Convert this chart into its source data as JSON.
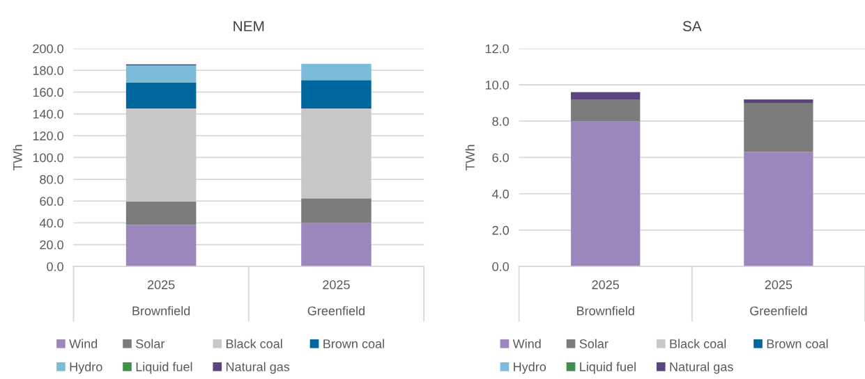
{
  "chart_data": [
    {
      "type": "bar",
      "title": "NEM",
      "ylabel": "TWh",
      "stacked": true,
      "categories": [
        "2025\n\nBrownfield",
        "2025\n\nGreenfield"
      ],
      "ylim": [
        0,
        200
      ],
      "yticks": [
        {
          "value": 0,
          "label": "0.0"
        },
        {
          "value": 20,
          "label": "20.0"
        },
        {
          "value": 40,
          "label": "40.0"
        },
        {
          "value": 60,
          "label": "60.0"
        },
        {
          "value": 80,
          "label": "80.0"
        },
        {
          "value": 100,
          "label": "100.0"
        },
        {
          "value": 120,
          "label": "120.0"
        },
        {
          "value": 140,
          "label": "140.0"
        },
        {
          "value": 160,
          "label": "160.0"
        },
        {
          "value": 180,
          "label": "180.0"
        },
        {
          "value": 200,
          "label": "200.0"
        }
      ],
      "grid": "y",
      "legend": "bottom",
      "series": [
        {
          "name": "Wind",
          "color": "#9b86be",
          "values": [
            38,
            40
          ]
        },
        {
          "name": "Solar",
          "color": "#7c7c7c",
          "values": [
            21.5,
            22.5
          ]
        },
        {
          "name": "Black coal",
          "color": "#c8c8c8",
          "values": [
            85.5,
            82.5
          ]
        },
        {
          "name": "Brown coal",
          "color": "#00679e",
          "values": [
            23.5,
            26
          ]
        },
        {
          "name": "Hydro",
          "color": "#7bbcd8",
          "values": [
            16,
            15
          ]
        },
        {
          "name": "Liquid fuel",
          "color": "#3f8f4f",
          "values": [
            0,
            0
          ]
        },
        {
          "name": "Natural gas",
          "color": "#5b4480",
          "values": [
            1,
            0
          ]
        }
      ]
    },
    {
      "type": "bar",
      "title": "SA",
      "ylabel": "TWh",
      "stacked": true,
      "categories": [
        "2025\n\nBrownfield",
        "2025\n\nGreenfield"
      ],
      "ylim": [
        0,
        12
      ],
      "yticks": [
        {
          "value": 0,
          "label": "0.0"
        },
        {
          "value": 2,
          "label": "2.0"
        },
        {
          "value": 4,
          "label": "4.0"
        },
        {
          "value": 6,
          "label": "6.0"
        },
        {
          "value": 8,
          "label": "8.0"
        },
        {
          "value": 10,
          "label": "10.0"
        },
        {
          "value": 12,
          "label": "12.0"
        }
      ],
      "grid": "y",
      "legend": "bottom",
      "series": [
        {
          "name": "Wind",
          "color": "#9b86be",
          "values": [
            8.0,
            6.3
          ]
        },
        {
          "name": "Solar",
          "color": "#7c7c7c",
          "values": [
            1.2,
            2.7
          ]
        },
        {
          "name": "Black coal",
          "color": "#c8c8c8",
          "values": [
            0,
            0
          ]
        },
        {
          "name": "Brown coal",
          "color": "#00679e",
          "values": [
            0,
            0
          ]
        },
        {
          "name": "Hydro",
          "color": "#7bbcd8",
          "values": [
            0,
            0
          ]
        },
        {
          "name": "Liquid fuel",
          "color": "#3f8f4f",
          "values": [
            0,
            0
          ]
        },
        {
          "name": "Natural gas",
          "color": "#5b4480",
          "values": [
            0.4,
            0.2
          ]
        }
      ]
    }
  ]
}
